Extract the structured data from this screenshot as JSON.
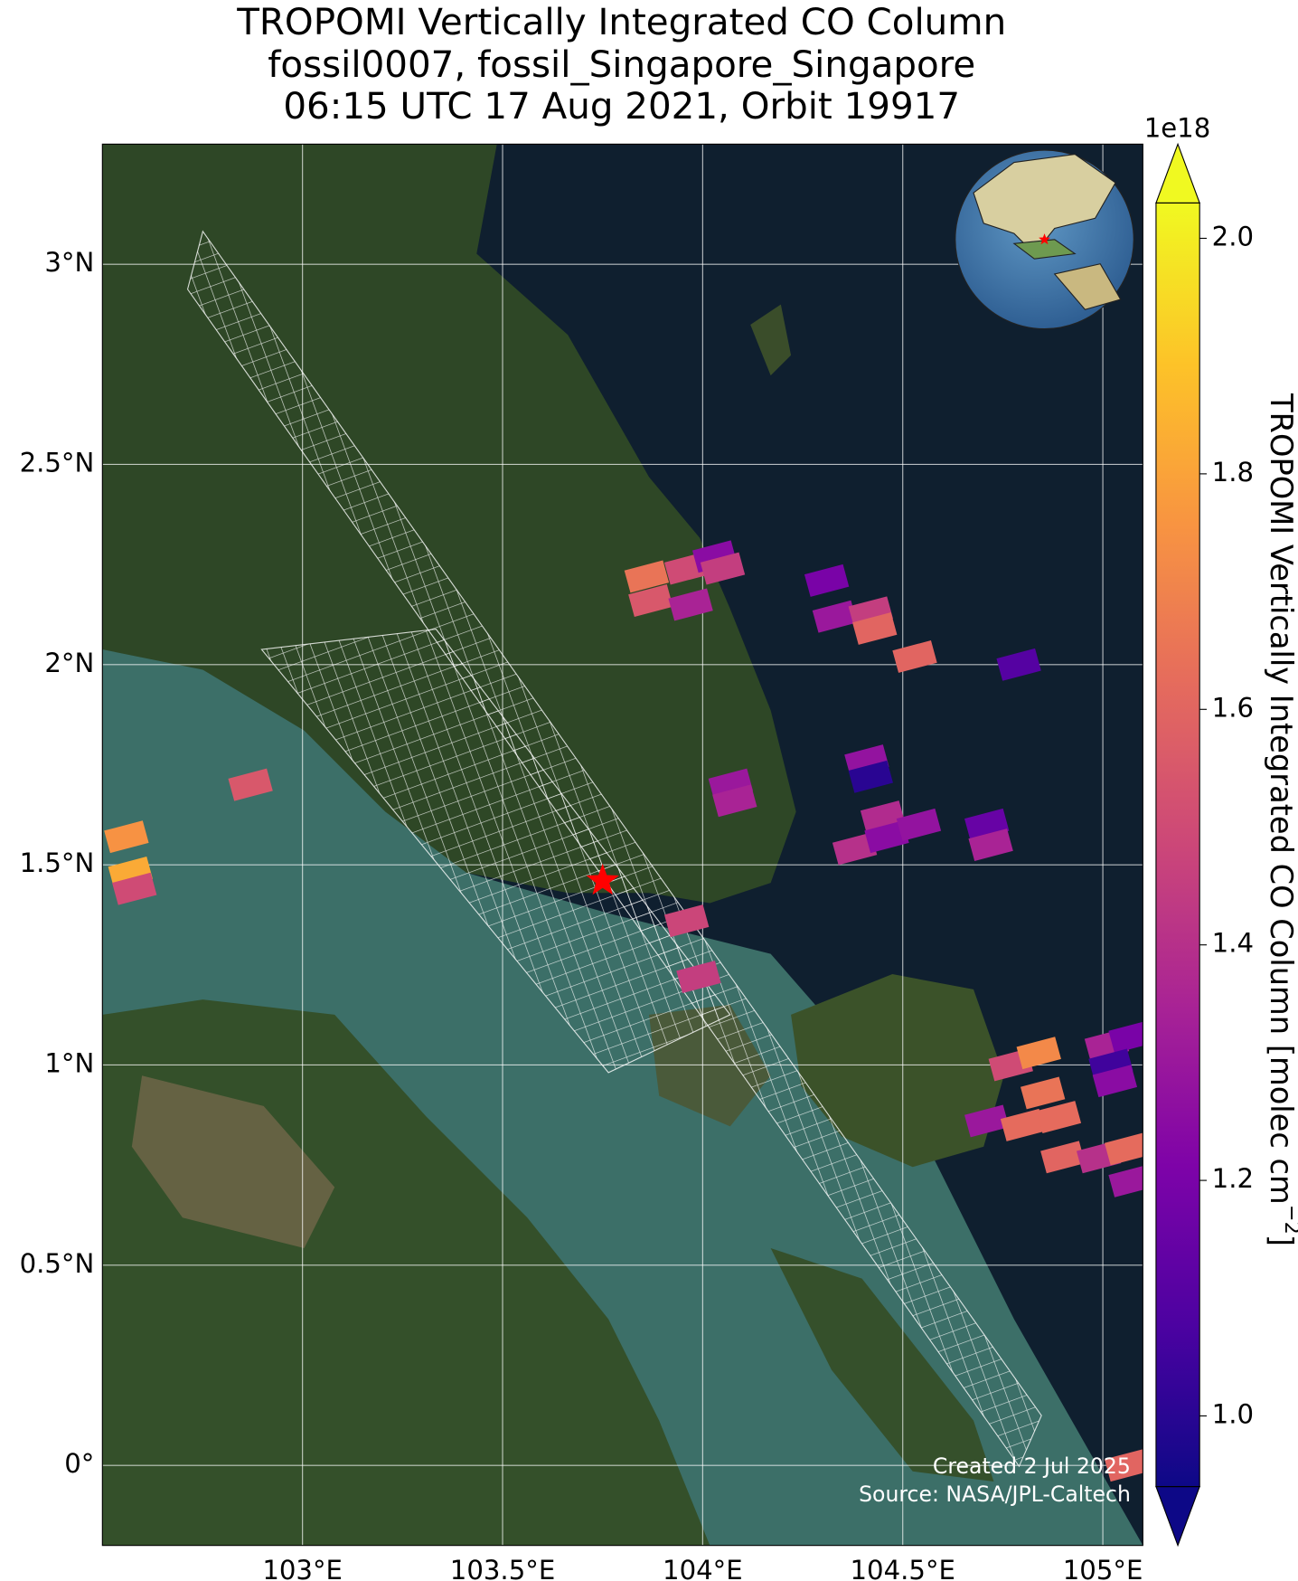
{
  "chart_data": {
    "type": "map",
    "title": [
      "TROPOMI Vertically Integrated CO Column",
      "fossil0007, fossil_Singapore_Singapore",
      "06:15 UTC 17 Aug 2021, Orbit 19917"
    ],
    "xlim": [
      102.5,
      105.1
    ],
    "ylim": [
      -0.2,
      3.3
    ],
    "xticks": [
      {
        "value": 103,
        "label": "103°E"
      },
      {
        "value": 103.5,
        "label": "103.5°E"
      },
      {
        "value": 104,
        "label": "104°E"
      },
      {
        "value": 104.5,
        "label": "104.5°E"
      },
      {
        "value": 105,
        "label": "105°E"
      }
    ],
    "yticks": [
      {
        "value": 0,
        "label": "0°"
      },
      {
        "value": 0.5,
        "label": "0.5°N"
      },
      {
        "value": 1,
        "label": "1°N"
      },
      {
        "value": 1.5,
        "label": "1.5°N"
      },
      {
        "value": 2,
        "label": "2°N"
      },
      {
        "value": 2.5,
        "label": "2.5°N"
      },
      {
        "value": 3,
        "label": "3°N"
      }
    ],
    "grid": true,
    "lon": [
      103.86,
      103.96,
      104.03,
      103.87,
      103.97,
      104.05,
      104.31,
      104.33,
      104.42,
      104.43,
      104.53,
      104.79,
      102.87,
      102.56,
      102.57,
      102.58,
      104.41,
      104.42,
      104.07,
      104.08,
      104.45,
      104.38,
      104.46,
      104.54,
      104.71,
      104.72,
      103.96,
      103.99,
      104.77,
      104.84,
      104.85,
      104.71,
      104.8,
      104.89,
      104.9,
      105.01,
      105.07,
      105.02,
      105.03,
      104.99,
      105.06,
      105.07,
      105.06
    ],
    "lat": [
      2.22,
      2.24,
      2.27,
      2.16,
      2.15,
      2.24,
      2.21,
      2.12,
      2.13,
      2.09,
      2.02,
      2.0,
      1.7,
      1.57,
      1.48,
      1.44,
      1.76,
      1.72,
      1.7,
      1.66,
      1.62,
      1.54,
      1.57,
      1.6,
      1.6,
      1.55,
      1.36,
      1.22,
      1.0,
      1.03,
      0.93,
      0.86,
      0.85,
      0.87,
      0.77,
      1.05,
      1.07,
      1.0,
      0.96,
      0.77,
      0.79,
      0.71,
      0.0
    ],
    "values": [
      1.65,
      1.5,
      1.25,
      1.55,
      1.35,
      1.45,
      1.2,
      1.3,
      1.45,
      1.6,
      1.6,
      1.1,
      1.55,
      1.75,
      1.82,
      1.5,
      1.28,
      1.0,
      1.3,
      1.35,
      1.38,
      1.4,
      1.25,
      1.28,
      1.15,
      1.35,
      1.48,
      1.45,
      1.5,
      1.72,
      1.65,
      1.3,
      1.62,
      1.62,
      1.6,
      1.35,
      1.2,
      1.05,
      1.25,
      1.4,
      1.62,
      1.3,
      1.6
    ],
    "site_lon": 103.75,
    "site_lat": 1.46,
    "site_color": "#ff0000",
    "colormap": "plasma",
    "clim": [
      0.94,
      2.03
    ],
    "extend": "both",
    "colorbar_offset": "1e18",
    "colorbar_ticks": [
      {
        "value": 1.0,
        "label": "1.0"
      },
      {
        "value": 1.2,
        "label": "1.2"
      },
      {
        "value": 1.4,
        "label": "1.4"
      },
      {
        "value": 1.6,
        "label": "1.6"
      },
      {
        "value": 1.8,
        "label": "1.8"
      },
      {
        "value": 2.0,
        "label": "2.0"
      }
    ],
    "colorbar_label": [
      "TROPOMI Vertically Integrated CO Column [molec cm",
      "−2",
      "]"
    ],
    "credit": [
      "Created 2 Jul 2025",
      "Source: NASA/JPL-Caltech"
    ]
  }
}
